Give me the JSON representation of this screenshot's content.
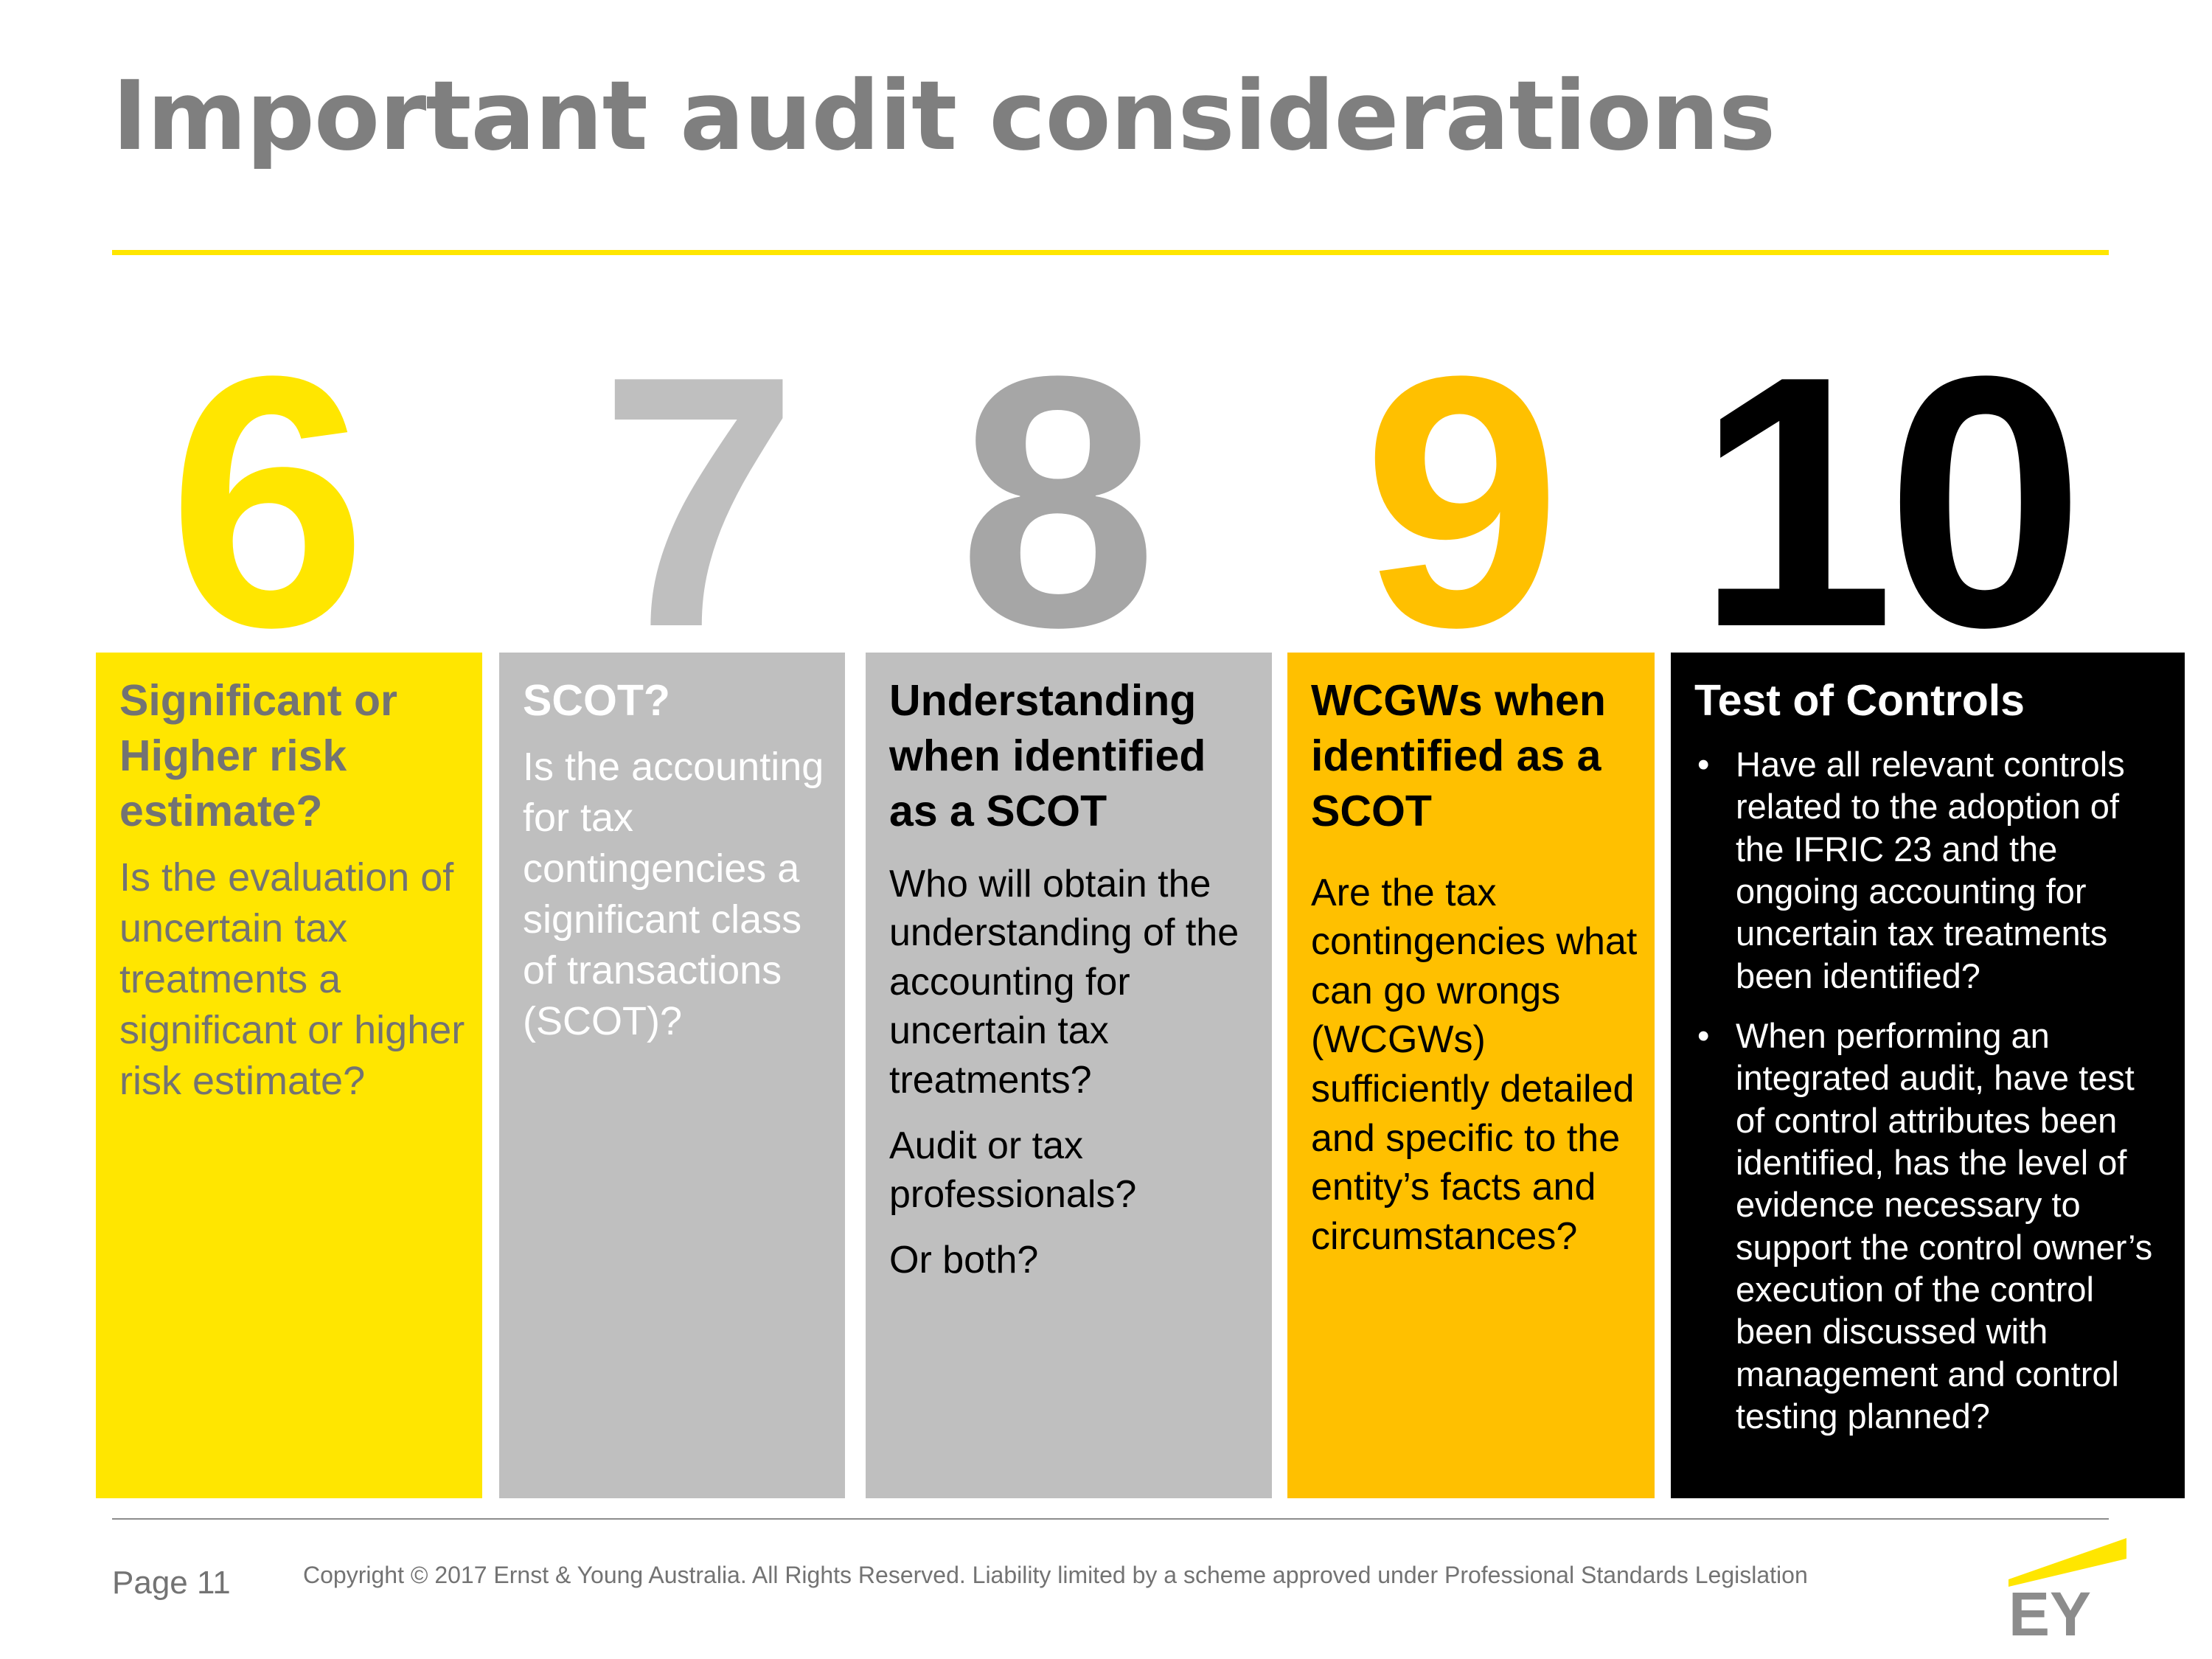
{
  "slide": {
    "title": "Important audit considerations",
    "accent_color": "#ffe600"
  },
  "columns": [
    {
      "number": "6",
      "number_color": "#ffe600",
      "panel_color": "#ffe600",
      "heading_color": "#737373",
      "text_color": "#737373",
      "heading": "Significant or Higher risk estimate?",
      "paragraphs": [
        "Is the evaluation of uncertain tax treatments a significant or higher risk estimate?"
      ]
    },
    {
      "number": "7",
      "number_color": "#bfbfbf",
      "panel_color": "#bfbfbf",
      "heading_color": "#ffffff",
      "text_color": "#ffffff",
      "heading": "SCOT?",
      "paragraphs": [
        "Is the accounting for tax contingencies a significant class of transactions (SCOT)?"
      ]
    },
    {
      "number": "8",
      "number_color": "#a6a6a6",
      "panel_color": "#bfbfbf",
      "heading_color": "#000000",
      "text_color": "#000000",
      "heading": "Understanding when identified as a SCOT",
      "paragraphs": [
        "Who will obtain the understanding of the accounting for uncertain tax treatments?",
        "Audit or tax professionals?",
        "Or both?"
      ]
    },
    {
      "number": "9",
      "number_color": "#ffc000",
      "panel_color": "#ffc000",
      "heading_color": "#000000",
      "text_color": "#000000",
      "heading": "WCGWs when identified as a SCOT",
      "paragraphs": [
        "Are the tax contingencies what can go wrongs (WCGWs) sufficiently detailed and specific to the entity’s facts and circumstances?"
      ]
    },
    {
      "number": "10",
      "number_color": "#000000",
      "panel_color": "#000000",
      "heading_color": "#ffffff",
      "text_color": "#ffffff",
      "heading": "Test of Controls",
      "bullet_char": "•",
      "bullets": [
        "Have all relevant controls related to the adoption of the IFRIC 23 and the ongoing accounting for uncertain tax treatments been identified?",
        "When performing an integrated audit, have test of control attributes been identified, has the level of evidence necessary to support the control owner’s execution of the control been discussed with management and control testing planned?"
      ]
    }
  ],
  "footer": {
    "page_label": "Page 11",
    "copyright": "Copyright © 2017 Ernst & Young Australia. All Rights Reserved. Liability limited by a scheme approved under Professional Standards Legislation",
    "logo_text": "EY",
    "logo_icon": "ey-logo-icon"
  }
}
